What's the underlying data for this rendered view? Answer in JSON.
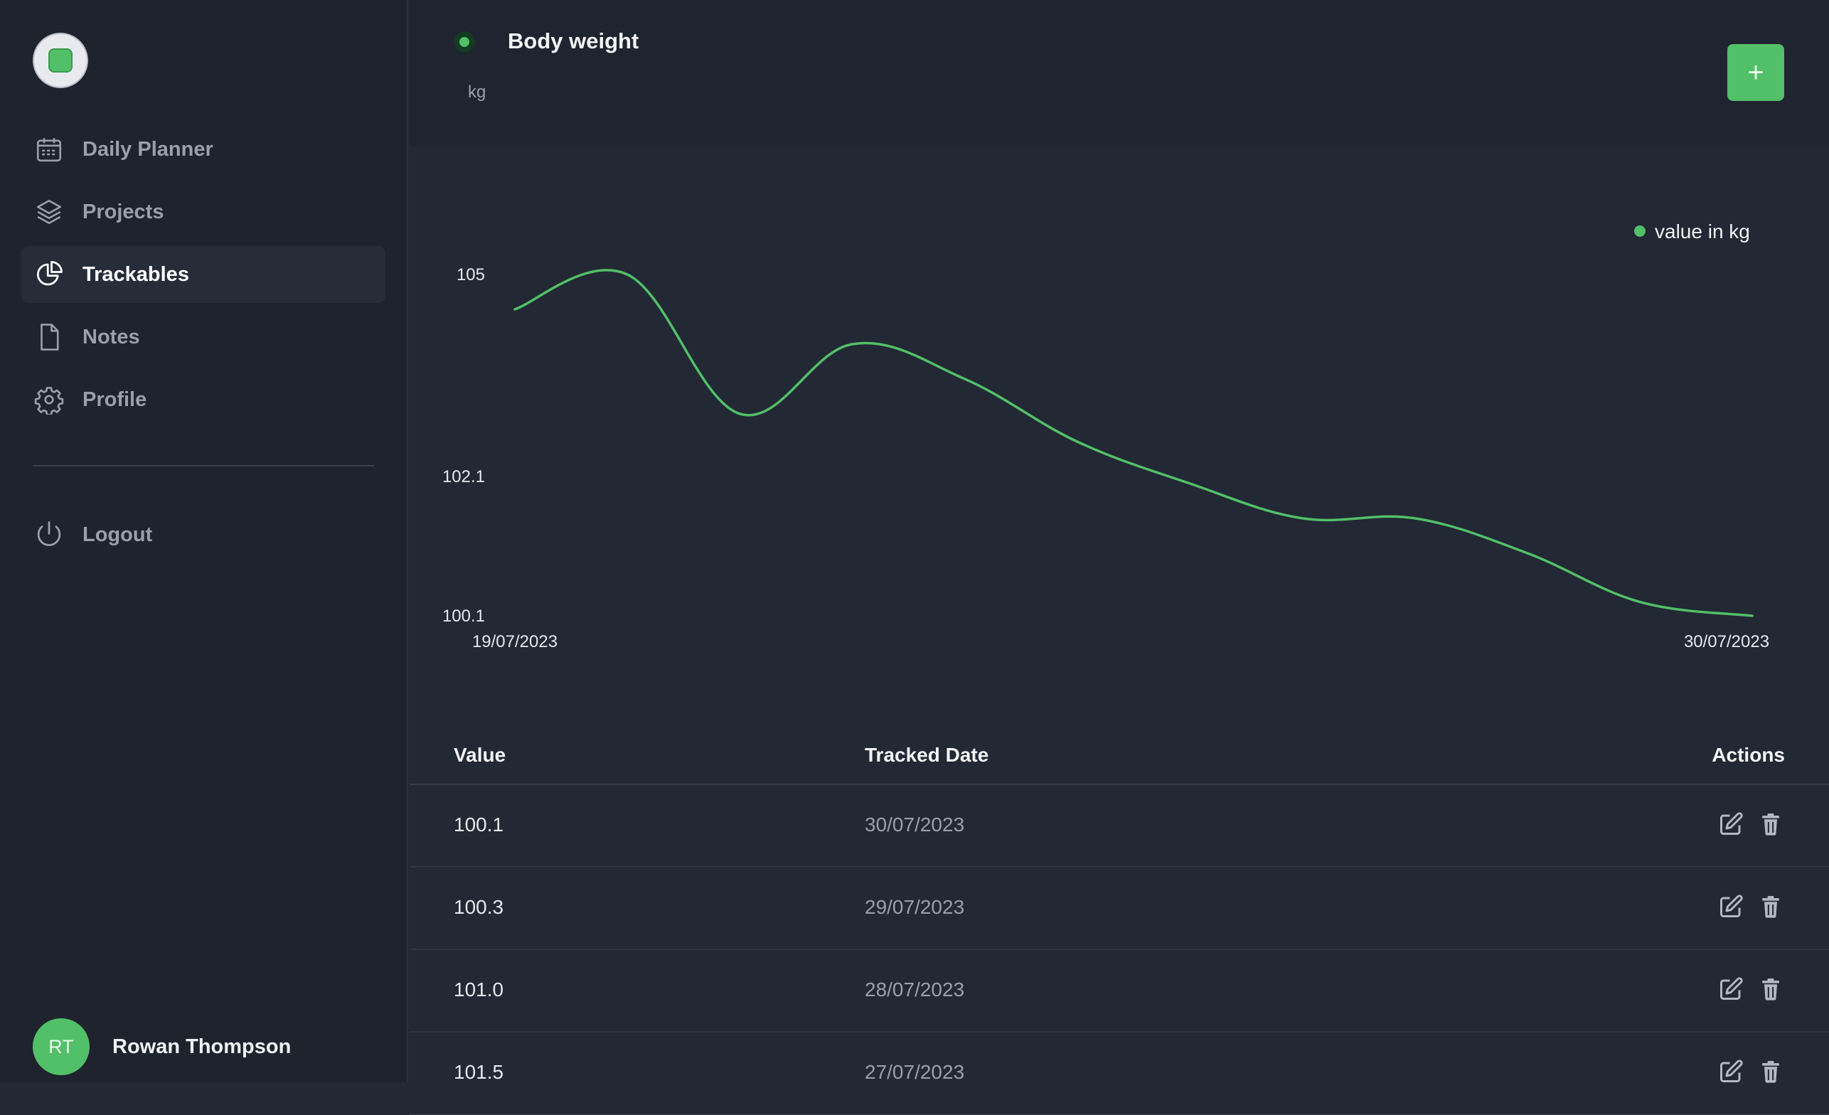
{
  "sidebar": {
    "items": [
      {
        "label": "Daily Planner",
        "icon": "calendar-icon",
        "active": false
      },
      {
        "label": "Projects",
        "icon": "layers-icon",
        "active": false
      },
      {
        "label": "Trackables",
        "icon": "pie-chart-icon",
        "active": true
      },
      {
        "label": "Notes",
        "icon": "document-icon",
        "active": false
      },
      {
        "label": "Profile",
        "icon": "gear-icon",
        "active": false
      }
    ],
    "logout_label": "Logout",
    "user": {
      "initials": "RT",
      "name": "Rowan Thompson"
    }
  },
  "header": {
    "title": "Body weight",
    "unit": "kg",
    "add_label": "+"
  },
  "chart_data": {
    "type": "line",
    "series": [
      {
        "name": "value in kg",
        "color": "#52c068"
      }
    ],
    "x_tick_labels": [
      "19/07/2023",
      "30/07/2023"
    ],
    "y_tick_labels": [
      "105",
      "102.1",
      "100.1"
    ],
    "y_ticks": [
      105,
      102.1,
      100.1
    ],
    "ylim": [
      100.1,
      105
    ],
    "x": [
      "19/07/2023",
      "20/07/2023",
      "21/07/2023",
      "22/07/2023",
      "23/07/2023",
      "24/07/2023",
      "25/07/2023",
      "26/07/2023",
      "27/07/2023",
      "28/07/2023",
      "29/07/2023",
      "30/07/2023"
    ],
    "values": [
      104.5,
      105.0,
      103.0,
      104.0,
      103.5,
      102.6,
      102.0,
      101.5,
      101.5,
      101.0,
      100.3,
      100.1
    ],
    "legend": "value in kg",
    "legend_position": "top-right"
  },
  "table": {
    "headers": {
      "value": "Value",
      "date": "Tracked Date",
      "actions": "Actions"
    },
    "rows": [
      {
        "value": "100.1",
        "date": "30/07/2023"
      },
      {
        "value": "100.3",
        "date": "29/07/2023"
      },
      {
        "value": "101.0",
        "date": "28/07/2023"
      },
      {
        "value": "101.5",
        "date": "27/07/2023"
      }
    ]
  },
  "colors": {
    "accent": "#52c068",
    "background": "#222834",
    "sidebar": "#1e232e"
  }
}
